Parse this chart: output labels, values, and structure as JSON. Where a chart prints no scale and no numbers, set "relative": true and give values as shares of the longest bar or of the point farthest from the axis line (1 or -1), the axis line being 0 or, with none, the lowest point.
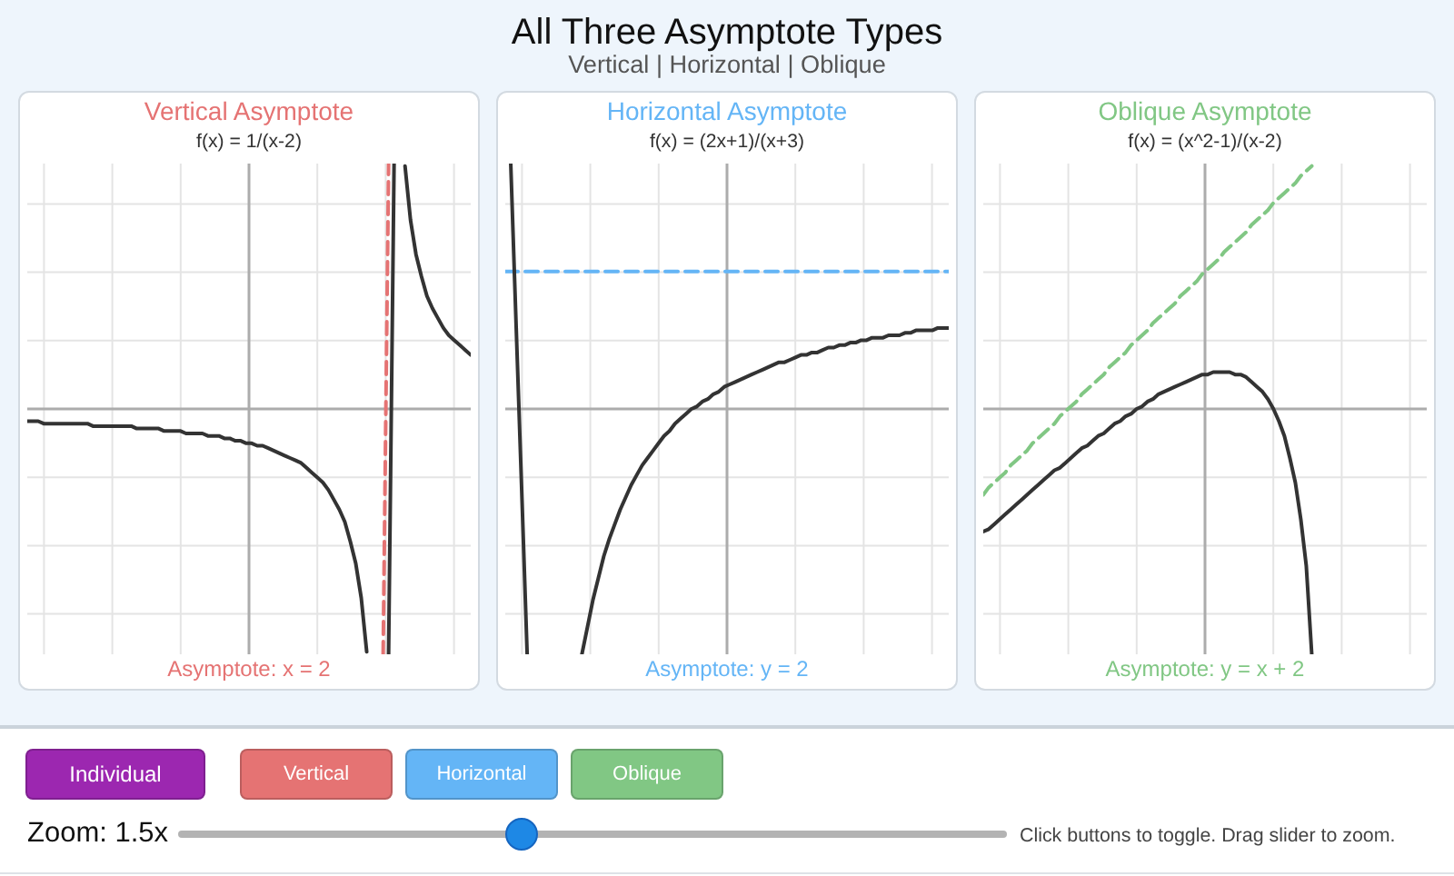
{
  "chart_data": [
    {
      "type": "other",
      "title": "All Three Asymptote Types",
      "subtitle": "Vertical | Horizontal | Oblique"
    },
    {
      "type": "line",
      "title": "Vertical Asymptote",
      "subtitle": "f(x) = 1/(x-2)",
      "annotations": [
        "Asymptote: x = 2"
      ],
      "relative": true,
      "grid": true,
      "tick_labels": false,
      "marker": "none",
      "categories": [
        null,
        null,
        null,
        null,
        null,
        null,
        null,
        null,
        null,
        null,
        null,
        null,
        null,
        null,
        null,
        null,
        null,
        null,
        null,
        null,
        null,
        null,
        null,
        null,
        null,
        null,
        null,
        null,
        null,
        null,
        null,
        null,
        null,
        null,
        null,
        null,
        null,
        null,
        null,
        null,
        null,
        null,
        null,
        null,
        null,
        null,
        null,
        null,
        null,
        null,
        null,
        null,
        null,
        null,
        null,
        null,
        null,
        null,
        null,
        null,
        null,
        null,
        null,
        null,
        null,
        null,
        null,
        null,
        null,
        null,
        null,
        null,
        null,
        null,
        null,
        null,
        null,
        null,
        null,
        null,
        null,
        null
      ],
      "series": [
        {
          "color": "#333333",
          "values": [
            -0.05,
            -0.05,
            -0.05,
            -0.06,
            -0.06,
            -0.06,
            -0.06,
            -0.06,
            -0.06,
            -0.06,
            -0.06,
            -0.06,
            -0.07,
            -0.07,
            -0.07,
            -0.07,
            -0.07,
            -0.07,
            -0.07,
            -0.07,
            -0.08,
            -0.08,
            -0.08,
            -0.08,
            -0.08,
            -0.09,
            -0.09,
            -0.09,
            -0.09,
            -0.1,
            -0.1,
            -0.1,
            -0.1,
            -0.11,
            -0.11,
            -0.11,
            -0.12,
            -0.12,
            -0.13,
            -0.13,
            -0.14,
            -0.14,
            -0.15,
            -0.15,
            -0.16,
            -0.17,
            -0.18,
            -0.19,
            -0.2,
            -0.21,
            -0.22,
            -0.24,
            -0.26,
            -0.28,
            -0.3,
            -0.33,
            -0.37,
            -0.41,
            -0.46,
            -0.54,
            -0.63,
            -0.77,
            -0.99,
            null,
            null,
            null,
            null,
            null,
            null,
            null,
            null,
            null,
            null,
            null,
            null,
            null,
            null,
            null,
            null,
            null,
            null,
            null
          ]
        },
        {
          "color": "#e57373",
          "line_style": "dashed",
          "values": [
            null,
            null,
            null,
            null,
            null,
            null,
            null,
            null,
            null,
            null,
            null,
            null,
            null,
            null,
            null,
            null,
            null,
            null,
            null,
            null,
            null,
            null,
            null,
            null,
            null,
            null,
            null,
            null,
            null,
            null,
            null,
            null,
            null,
            null,
            null,
            null,
            null,
            null,
            null,
            null,
            null,
            null,
            null,
            null,
            null,
            null,
            null,
            null,
            null,
            null,
            null,
            null,
            null,
            null,
            null,
            null,
            null,
            null,
            null,
            null,
            null,
            null,
            null,
            null,
            null,
            -1,
            1,
            null,
            null,
            null,
            null,
            null,
            null,
            null,
            null,
            null,
            null,
            null,
            null,
            null,
            null,
            null
          ]
        },
        {
          "color": "#333333",
          "values": [
            null,
            null,
            null,
            null,
            null,
            null,
            null,
            null,
            null,
            null,
            null,
            null,
            null,
            null,
            null,
            null,
            null,
            null,
            null,
            null,
            null,
            null,
            null,
            null,
            null,
            null,
            null,
            null,
            null,
            null,
            null,
            null,
            null,
            null,
            null,
            null,
            null,
            null,
            null,
            null,
            null,
            null,
            null,
            null,
            null,
            null,
            null,
            null,
            null,
            null,
            null,
            null,
            null,
            null,
            null,
            null,
            null,
            null,
            null,
            null,
            null,
            null,
            null,
            null,
            null,
            null,
            -1,
            1,
            null,
            null,
            null,
            null,
            null,
            null,
            null,
            null,
            null,
            null,
            null,
            null,
            null,
            null
          ]
        },
        {
          "color": "#333333",
          "values": [
            null,
            null,
            null,
            null,
            null,
            null,
            null,
            null,
            null,
            null,
            null,
            null,
            null,
            null,
            null,
            null,
            null,
            null,
            null,
            null,
            null,
            null,
            null,
            null,
            null,
            null,
            null,
            null,
            null,
            null,
            null,
            null,
            null,
            null,
            null,
            null,
            null,
            null,
            null,
            null,
            null,
            null,
            null,
            null,
            null,
            null,
            null,
            null,
            null,
            null,
            null,
            null,
            null,
            null,
            null,
            null,
            null,
            null,
            null,
            null,
            null,
            null,
            null,
            null,
            null,
            null,
            null,
            null,
            null,
            0.99,
            0.77,
            0.63,
            0.54,
            0.46,
            0.41,
            0.37,
            0.33,
            0.3,
            0.28,
            0.26,
            0.24,
            0.22
          ]
        }
      ]
    },
    {
      "type": "line",
      "title": "Horizontal Asymptote",
      "subtitle": "f(x) = (2x+1)/(x+3)",
      "annotations": [
        "Asymptote: y = 2"
      ],
      "relative": true,
      "grid": true,
      "tick_labels": false,
      "marker": "none",
      "categories": [
        null,
        null,
        null,
        null,
        null,
        null,
        null,
        null,
        null,
        null,
        null,
        null,
        null,
        null,
        null,
        null,
        null,
        null,
        null,
        null,
        null,
        null,
        null,
        null,
        null,
        null,
        null,
        null,
        null,
        null,
        null,
        null,
        null,
        null,
        null,
        null,
        null,
        null,
        null,
        null,
        null,
        null,
        null,
        null,
        null,
        null,
        null,
        null,
        null,
        null,
        null,
        null,
        null,
        null,
        null,
        null,
        null,
        null,
        null,
        null,
        null,
        null,
        null,
        null,
        null,
        null,
        null,
        null,
        null,
        null,
        null,
        null,
        null,
        null,
        null,
        null,
        null,
        null,
        null,
        null,
        null,
        null
      ],
      "series": [
        {
          "color": "#64b5f6",
          "line_style": "dashed",
          "values": [
            0.56,
            0.56,
            0.56,
            0.56,
            0.56,
            0.56,
            0.56,
            0.56,
            0.56,
            0.56,
            0.56,
            0.56,
            0.56,
            0.56,
            0.56,
            0.56,
            0.56,
            0.56,
            0.56,
            0.56,
            0.56,
            0.56,
            0.56,
            0.56,
            0.56,
            0.56,
            0.56,
            0.56,
            0.56,
            0.56,
            0.56,
            0.56,
            0.56,
            0.56,
            0.56,
            0.56,
            0.56,
            0.56,
            0.56,
            0.56,
            0.56,
            0.56,
            0.56,
            0.56,
            0.56,
            0.56,
            0.56,
            0.56,
            0.56,
            0.56,
            0.56,
            0.56,
            0.56,
            0.56,
            0.56,
            0.56,
            0.56,
            0.56,
            0.56,
            0.56,
            0.56,
            0.56,
            0.56,
            0.56,
            0.56,
            0.56,
            0.56,
            0.56,
            0.56,
            0.56,
            0.56,
            0.56,
            0.56,
            0.56,
            0.56,
            0.56,
            0.56,
            0.56,
            0.56,
            0.56,
            0.56,
            0.56
          ]
        },
        {
          "color": "#333333",
          "values": [
            null,
            1,
            0.33,
            -0.33,
            -1,
            null,
            null,
            null,
            null,
            null,
            null,
            null,
            null,
            null,
            -1,
            -0.89,
            -0.78,
            -0.69,
            -0.6,
            -0.53,
            -0.47,
            -0.41,
            -0.36,
            -0.31,
            -0.27,
            -0.23,
            -0.2,
            -0.17,
            -0.14,
            -0.11,
            -0.09,
            -0.06,
            -0.04,
            -0.02,
            0,
            0.01,
            0.03,
            0.04,
            0.06,
            0.07,
            0.09,
            0.1,
            0.11,
            0.12,
            0.13,
            0.14,
            0.15,
            0.16,
            0.17,
            0.18,
            0.19,
            0.19,
            0.2,
            0.21,
            0.22,
            0.22,
            0.23,
            0.23,
            0.24,
            0.25,
            0.25,
            0.26,
            0.26,
            0.27,
            0.27,
            0.28,
            0.28,
            0.29,
            0.29,
            0.29,
            0.3,
            0.3,
            0.3,
            0.31,
            0.31,
            0.32,
            0.32,
            0.32,
            0.32,
            0.33,
            0.33,
            0.33
          ]
        }
      ]
    },
    {
      "type": "line",
      "title": "Oblique Asymptote",
      "subtitle": "f(x) = (x^2-1)/(x-2)",
      "annotations": [
        "Asymptote: y = x + 2"
      ],
      "relative": true,
      "grid": true,
      "tick_labels": false,
      "marker": "none",
      "categories": [
        null,
        null,
        null,
        null,
        null,
        null,
        null,
        null,
        null,
        null,
        null,
        null,
        null,
        null,
        null,
        null,
        null,
        null,
        null,
        null,
        null,
        null,
        null,
        null,
        null,
        null,
        null,
        null,
        null,
        null,
        null,
        null,
        null,
        null,
        null,
        null,
        null,
        null,
        null,
        null,
        null,
        null,
        null,
        null,
        null,
        null,
        null,
        null,
        null,
        null,
        null,
        null,
        null,
        null,
        null,
        null,
        null,
        null,
        null,
        null,
        null,
        null,
        null,
        null,
        null,
        null,
        null,
        null,
        null,
        null,
        null,
        null,
        null,
        null,
        null,
        null,
        null,
        null,
        null,
        null,
        null,
        null
      ],
      "series": [
        {
          "color": "#81c784",
          "line_style": "dashed",
          "values": [
            -0.35,
            -0.32,
            -0.3,
            -0.28,
            -0.26,
            -0.23,
            -0.21,
            -0.19,
            -0.17,
            -0.14,
            -0.12,
            -0.1,
            -0.08,
            -0.06,
            -0.03,
            -0.01,
            0.01,
            0.03,
            0.06,
            0.08,
            0.1,
            0.12,
            0.14,
            0.17,
            0.19,
            0.21,
            0.23,
            0.26,
            0.28,
            0.3,
            0.32,
            0.35,
            0.37,
            0.39,
            0.41,
            0.43,
            0.46,
            0.48,
            0.5,
            0.52,
            0.55,
            0.57,
            0.59,
            0.61,
            0.64,
            0.66,
            0.68,
            0.7,
            0.72,
            0.75,
            0.77,
            0.79,
            0.81,
            0.84,
            0.86,
            0.88,
            0.9,
            0.92,
            0.95,
            0.97,
            0.99,
            null,
            null,
            null,
            null,
            null,
            null,
            null,
            null,
            null,
            null,
            null,
            null,
            null,
            null,
            null,
            null,
            null,
            null,
            null,
            null,
            null
          ]
        },
        {
          "color": "#333333",
          "values": [
            -0.5,
            -0.49,
            -0.47,
            -0.45,
            -0.43,
            -0.41,
            -0.39,
            -0.37,
            -0.35,
            -0.33,
            -0.31,
            -0.29,
            -0.27,
            -0.25,
            -0.24,
            -0.22,
            -0.2,
            -0.18,
            -0.16,
            -0.15,
            -0.13,
            -0.11,
            -0.1,
            -0.08,
            -0.06,
            -0.05,
            -0.03,
            -0.02,
            0,
            0.01,
            0.03,
            0.04,
            0.06,
            0.07,
            0.08,
            0.09,
            0.1,
            0.11,
            0.12,
            0.13,
            0.14,
            0.14,
            0.15,
            0.15,
            0.15,
            0.15,
            0.14,
            0.14,
            0.13,
            0.11,
            0.09,
            0.07,
            0.04,
            0,
            -0.05,
            -0.11,
            -0.2,
            -0.3,
            -0.45,
            -0.64,
            -1,
            null,
            null,
            null,
            null,
            null,
            null,
            null,
            null,
            null,
            null,
            null,
            null,
            null,
            null,
            null,
            null,
            null,
            null,
            null,
            null,
            null
          ]
        }
      ]
    },
    {
      "type": "other",
      "annotations": [
        "Individual",
        "Vertical",
        "Horizontal",
        "Oblique",
        "Zoom: 1.5x",
        "Click buttons to toggle. Drag slider to zoom."
      ]
    }
  ]
}
